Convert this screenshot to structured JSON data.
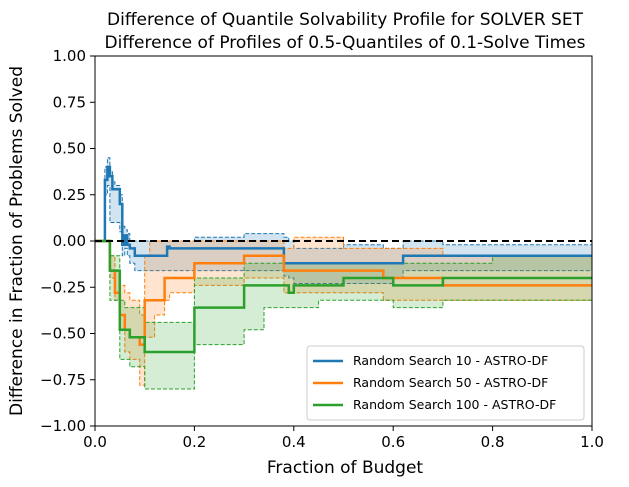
{
  "chart_data": {
    "type": "line",
    "title": "Difference of Quantile Solvability Profile for SOLVER SET",
    "subtitle": "Difference of Profiles of 0.5-Quantiles of 0.1-Solve Times",
    "xlabel": "Fraction of Budget",
    "ylabel": "Difference in Fraction of Problems Solved",
    "xlim": [
      0,
      1
    ],
    "ylim": [
      -1,
      1
    ],
    "xticks": [
      0,
      0.2,
      0.4,
      0.6,
      0.8,
      1
    ],
    "xtick_labels": [
      "0.0",
      "0.2",
      "0.4",
      "0.6",
      "0.8",
      "1.0"
    ],
    "yticks": [
      -1,
      -0.75,
      -0.5,
      -0.25,
      0,
      0.25,
      0.5,
      0.75,
      1
    ],
    "ytick_labels": [
      "−1.00",
      "−0.75",
      "−0.50",
      "−0.25",
      "0.00",
      "0.25",
      "0.50",
      "0.75",
      "1.00"
    ],
    "grid": false,
    "legend_position": "lower-right",
    "reference_line": 0,
    "series": [
      {
        "name": "Random Search 10 - ASTRO-DF",
        "color": "#1f77b4",
        "x": [
          0,
          0.02,
          0.025,
          0.03,
          0.035,
          0.04,
          0.045,
          0.05,
          0.055,
          0.06,
          0.065,
          0.07,
          0.08,
          0.14,
          0.145,
          0.15,
          0.2,
          0.3,
          0.38,
          0.39,
          0.4,
          0.45,
          0.5,
          0.58,
          0.6,
          0.62,
          0.7,
          0.8,
          1.0
        ],
        "y": [
          0,
          0.33,
          0.4,
          0.35,
          0.28,
          0.28,
          0.28,
          0.2,
          -0.02,
          0.03,
          -0.02,
          -0.04,
          -0.08,
          -0.08,
          -0.03,
          -0.04,
          -0.04,
          -0.04,
          -0.12,
          -0.12,
          -0.12,
          -0.12,
          -0.12,
          -0.12,
          -0.12,
          -0.08,
          -0.08,
          -0.08,
          -0.08
        ],
        "upper": [
          0,
          0.4,
          0.45,
          0.38,
          0.32,
          0.3,
          0.3,
          0.25,
          0.08,
          0.06,
          0.04,
          0.0,
          0.0,
          0.0,
          0.0,
          0.0,
          0.02,
          0.04,
          0.02,
          0.0,
          -0.04,
          -0.04,
          -0.02,
          -0.04,
          -0.04,
          0.0,
          -0.02,
          -0.02,
          -0.02
        ],
        "lower": [
          0,
          0.25,
          0.3,
          0.1,
          0.1,
          0.1,
          0.1,
          0.05,
          -0.08,
          -0.04,
          -0.08,
          -0.12,
          -0.16,
          -0.16,
          -0.16,
          -0.16,
          -0.16,
          -0.16,
          -0.19,
          -0.2,
          -0.23,
          -0.23,
          -0.23,
          -0.23,
          -0.2,
          -0.16,
          -0.16,
          -0.16,
          -0.16
        ]
      },
      {
        "name": "Random Search 50 - ASTRO-DF",
        "color": "#ff7f0e",
        "x": [
          0,
          0.02,
          0.03,
          0.04,
          0.05,
          0.06,
          0.07,
          0.08,
          0.09,
          0.1,
          0.11,
          0.12,
          0.13,
          0.14,
          0.15,
          0.2,
          0.3,
          0.34,
          0.38,
          0.39,
          0.4,
          0.45,
          0.5,
          0.58,
          0.6,
          0.62,
          0.7,
          0.8,
          1.0
        ],
        "y": [
          0,
          0,
          -0.16,
          -0.28,
          -0.4,
          -0.48,
          -0.52,
          -0.52,
          -0.56,
          -0.32,
          -0.32,
          -0.32,
          -0.32,
          -0.2,
          -0.2,
          -0.12,
          -0.08,
          -0.08,
          -0.16,
          -0.16,
          -0.16,
          -0.16,
          -0.16,
          -0.2,
          -0.2,
          -0.2,
          -0.24,
          -0.24,
          -0.24
        ],
        "upper": [
          0,
          0,
          -0.08,
          -0.16,
          -0.24,
          -0.28,
          -0.32,
          -0.32,
          -0.4,
          -0.08,
          0.0,
          0.0,
          0.0,
          0.0,
          0.0,
          0.0,
          0.0,
          0.0,
          -0.04,
          -0.04,
          0.02,
          0.02,
          -0.04,
          -0.04,
          -0.04,
          -0.04,
          -0.08,
          -0.08,
          -0.08
        ],
        "lower": [
          0,
          0,
          -0.2,
          -0.32,
          -0.48,
          -0.6,
          -0.64,
          -0.64,
          -0.78,
          -0.52,
          -0.52,
          -0.4,
          -0.4,
          -0.32,
          -0.28,
          -0.24,
          -0.2,
          -0.2,
          -0.28,
          -0.28,
          -0.28,
          -0.28,
          -0.28,
          -0.32,
          -0.32,
          -0.32,
          -0.32,
          -0.32,
          -0.32
        ]
      },
      {
        "name": "Random Search 100 - ASTRO-DF",
        "color": "#2ca02c",
        "x": [
          0,
          0.02,
          0.03,
          0.05,
          0.06,
          0.07,
          0.1,
          0.2,
          0.3,
          0.34,
          0.38,
          0.39,
          0.4,
          0.45,
          0.5,
          0.58,
          0.6,
          0.62,
          0.7,
          0.8,
          1.0
        ],
        "y": [
          0,
          0,
          -0.16,
          -0.48,
          -0.48,
          -0.52,
          -0.6,
          -0.36,
          -0.24,
          -0.24,
          -0.24,
          -0.28,
          -0.24,
          -0.24,
          -0.2,
          -0.2,
          -0.24,
          -0.24,
          -0.2,
          -0.2,
          -0.2
        ],
        "upper": [
          0,
          0,
          -0.08,
          -0.32,
          -0.36,
          -0.36,
          -0.44,
          -0.2,
          -0.12,
          -0.12,
          -0.12,
          -0.12,
          -0.12,
          -0.12,
          -0.12,
          -0.12,
          -0.12,
          -0.12,
          -0.12,
          -0.08,
          -0.08
        ],
        "lower": [
          0,
          0,
          -0.32,
          -0.64,
          -0.64,
          -0.68,
          -0.8,
          -0.56,
          -0.48,
          -0.36,
          -0.36,
          -0.36,
          -0.36,
          -0.32,
          -0.32,
          -0.32,
          -0.36,
          -0.36,
          -0.32,
          -0.32,
          -0.32
        ]
      }
    ]
  }
}
